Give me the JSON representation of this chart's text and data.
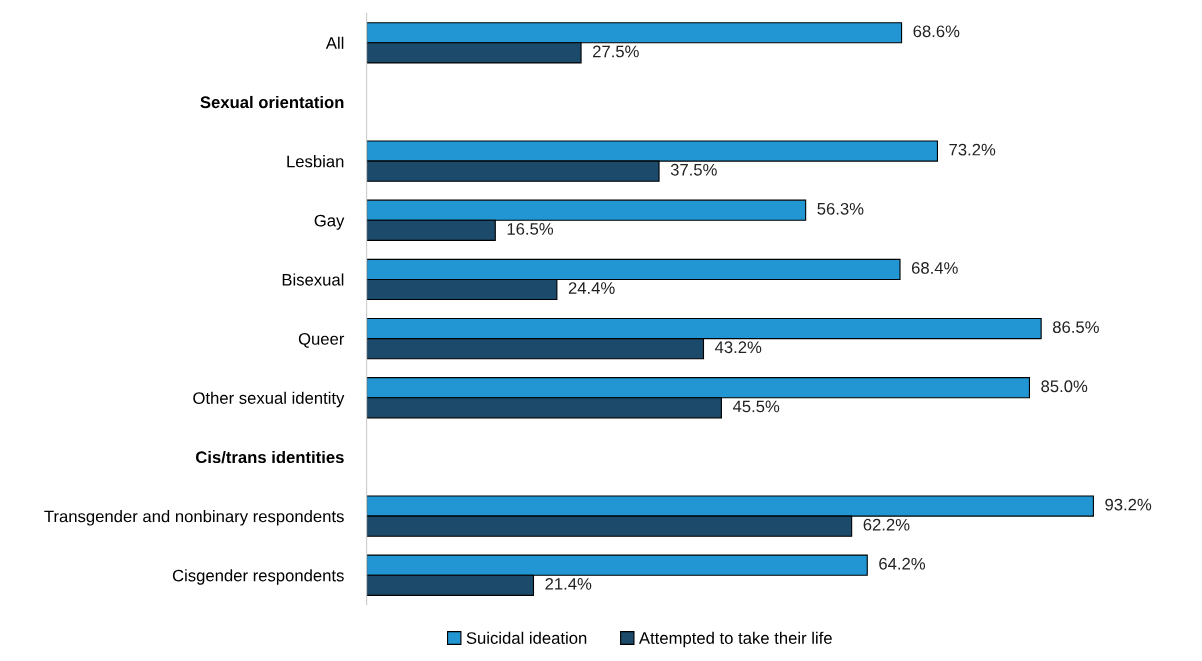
{
  "chart_data": {
    "type": "bar",
    "orientation": "horizontal",
    "categories": [
      "All",
      "Sexual orientation",
      "Lesbian",
      "Gay",
      "Bisexual",
      "Queer",
      "Other sexual identity",
      "Cis/trans identities",
      "Transgender and nonbinary respondents",
      "Cisgender respondents"
    ],
    "series": [
      {
        "name": "Suicidal ideation",
        "color": "#2196d3",
        "values": [
          68.6,
          null,
          73.2,
          56.3,
          68.4,
          86.5,
          85.0,
          null,
          93.2,
          64.2
        ],
        "value_labels": [
          "68.6%",
          null,
          "73.2%",
          "56.3%",
          "68.4%",
          "86.5%",
          "85.0%",
          null,
          "93.2%",
          "64.2%"
        ]
      },
      {
        "name": "Attempted to take their life",
        "color": "#1b4a6b",
        "values": [
          27.5,
          null,
          37.5,
          16.5,
          24.4,
          43.2,
          45.5,
          null,
          62.2,
          21.4
        ],
        "value_labels": [
          "27.5%",
          null,
          "37.5%",
          "16.5%",
          "24.4%",
          "43.2%",
          "45.5%",
          null,
          "62.2%",
          "21.4%"
        ]
      }
    ],
    "tick_labels": "y",
    "grid": false,
    "legend": "bottom"
  }
}
